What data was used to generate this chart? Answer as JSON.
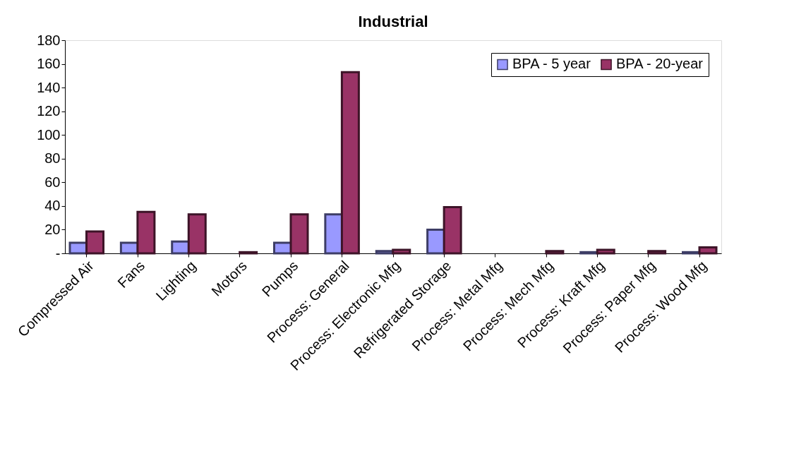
{
  "chart_data": {
    "type": "bar",
    "title": "Industrial",
    "categories": [
      "Compressed Air",
      "Fans",
      "Lighting",
      "Motors",
      "Pumps",
      "Process: General",
      "Process: Electronic Mfg",
      "Refrigerated Storage",
      "Process: Metal Mfg",
      "Process: Mech Mfg",
      "Process: Kraft Mfg",
      "Process: Paper Mfg",
      "Process: Wood Mfg"
    ],
    "series": [
      {
        "name": "BPA - 5 year",
        "color": "#9999ff",
        "values": [
          9,
          9,
          10,
          0,
          9,
          33,
          2,
          20,
          0,
          0,
          1,
          0,
          1
        ]
      },
      {
        "name": "BPA - 20-year",
        "color": "#993366",
        "values": [
          18.5,
          35,
          33,
          1,
          33,
          153,
          3,
          39,
          0,
          2,
          3,
          2,
          5
        ]
      }
    ],
    "ylim": [
      0,
      180
    ],
    "yticks": [
      {
        "value": 0,
        "label": "-"
      },
      20,
      40,
      60,
      80,
      100,
      120,
      140,
      160,
      180
    ],
    "grid": false,
    "legend": "top right"
  }
}
